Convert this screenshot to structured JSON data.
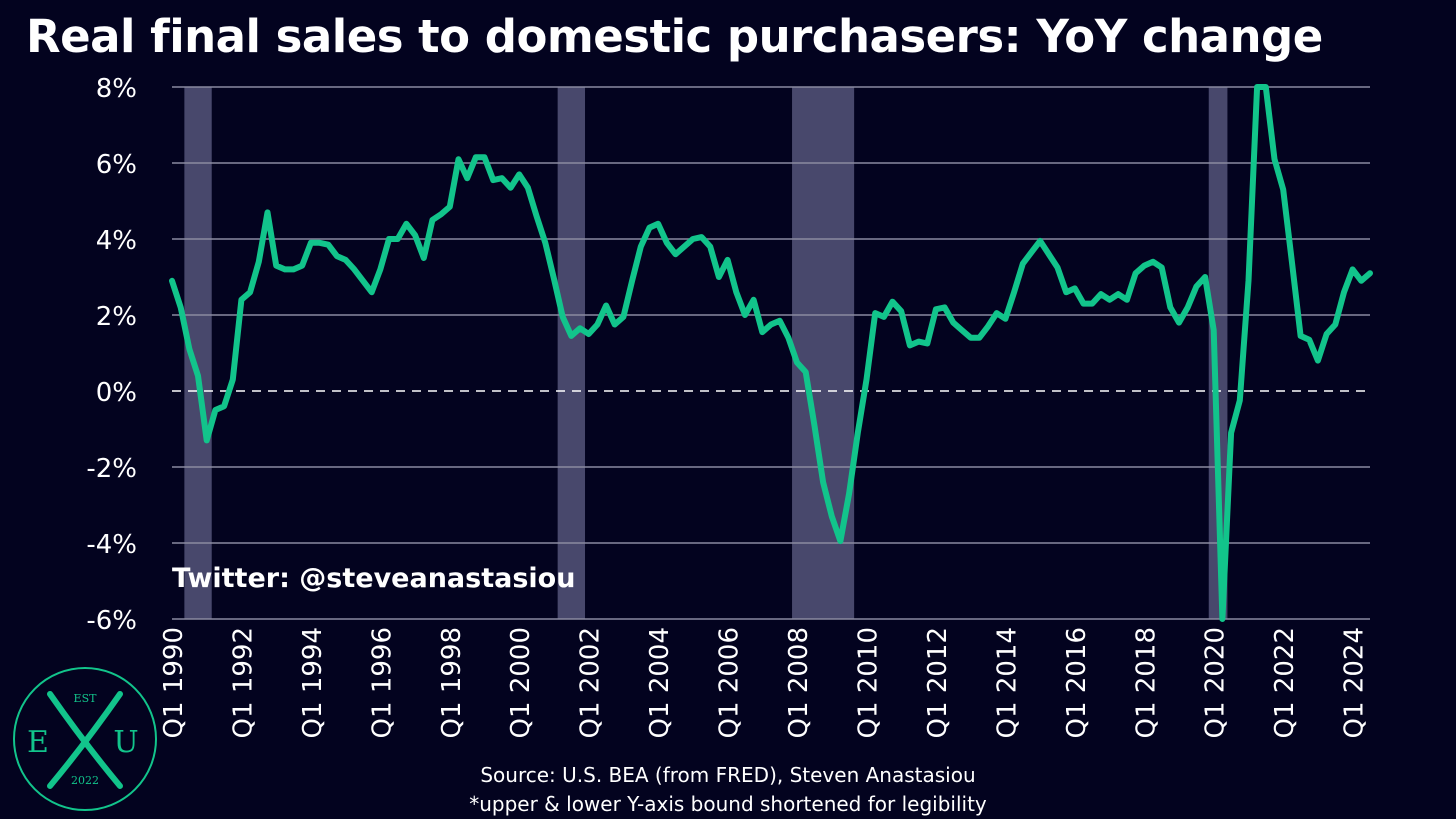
{
  "title": "Real final sales to domestic purchasers: YoY change",
  "watermark": "Twitter: @steveanastasiou",
  "source": "Source: U.S. BEA (from FRED), Steven Anastasiou",
  "note": "*upper & lower Y-axis bound shortened for legibility",
  "logo": {
    "top_text": "EST",
    "left_letter": "E",
    "right_letter": "U",
    "bottom_text": "2022"
  },
  "colors": {
    "background": "#03031f",
    "line": "#12c48b",
    "recession": "#55557a",
    "grid": "#8a8aa0",
    "text": "#ffffff",
    "logo": "#12c48b"
  },
  "chart_data": {
    "type": "line",
    "title": "Real final sales to domestic purchasers: YoY change",
    "xlabel": "",
    "ylabel": "",
    "ylim": [
      -6,
      8
    ],
    "yticks": [
      -6,
      -4,
      -2,
      0,
      2,
      4,
      6,
      8
    ],
    "ytick_labels": [
      "-6%",
      "-4%",
      "-2%",
      "0%",
      "2%",
      "4%",
      "6%",
      "8%"
    ],
    "xtick_labels": [
      "Q1 1990",
      "Q1 1992",
      "Q1 1994",
      "Q1 1996",
      "Q1 1998",
      "Q1 2000",
      "Q1 2002",
      "Q1 2004",
      "Q1 2006",
      "Q1 2008",
      "Q1 2010",
      "Q1 2012",
      "Q1 2014",
      "Q1 2016",
      "Q1 2018",
      "Q1 2020",
      "Q1 2022",
      "Q1 2024"
    ],
    "xtick_years": [
      1990,
      1992,
      1994,
      1996,
      1998,
      2000,
      2002,
      2004,
      2006,
      2008,
      2010,
      2012,
      2014,
      2016,
      2018,
      2020,
      2022,
      2024
    ],
    "x_range": [
      1990.0,
      2024.5
    ],
    "grid": true,
    "zero_line": "dashed",
    "recessions": [
      [
        1990.5,
        1991.0
      ],
      [
        2001.25,
        2001.75
      ],
      [
        2008.0,
        2009.5
      ],
      [
        2020.0,
        2020.25
      ]
    ],
    "series": [
      {
        "name": "",
        "x": [
          1990.0,
          1990.25,
          1990.5,
          1990.75,
          1991.0,
          1991.25,
          1991.5,
          1991.75,
          1992.0,
          1992.25,
          1992.5,
          1992.75,
          1993.0,
          1993.25,
          1993.5,
          1993.75,
          1994.0,
          1994.25,
          1994.5,
          1994.75,
          1995.0,
          1995.25,
          1995.5,
          1995.75,
          1996.0,
          1996.25,
          1996.5,
          1996.75,
          1997.0,
          1997.25,
          1997.5,
          1997.75,
          1998.0,
          1998.25,
          1998.5,
          1998.75,
          1999.0,
          1999.25,
          1999.5,
          1999.75,
          2000.0,
          2000.25,
          2000.5,
          2000.75,
          2001.0,
          2001.25,
          2001.5,
          2001.75,
          2002.0,
          2002.25,
          2002.5,
          2002.75,
          2003.0,
          2003.25,
          2003.5,
          2003.75,
          2004.0,
          2004.25,
          2004.5,
          2004.75,
          2005.0,
          2005.25,
          2005.5,
          2005.75,
          2006.0,
          2006.25,
          2006.5,
          2006.75,
          2007.0,
          2007.25,
          2007.5,
          2007.75,
          2008.0,
          2008.25,
          2008.5,
          2008.75,
          2009.0,
          2009.25,
          2009.5,
          2009.75,
          2010.0,
          2010.25,
          2010.5,
          2010.75,
          2011.0,
          2011.25,
          2011.5,
          2011.75,
          2012.0,
          2012.25,
          2012.5,
          2012.75,
          2013.0,
          2013.25,
          2013.5,
          2013.75,
          2014.0,
          2014.25,
          2014.5,
          2014.75,
          2015.0,
          2015.25,
          2015.5,
          2015.75,
          2016.0,
          2016.25,
          2016.5,
          2016.75,
          2017.0,
          2017.25,
          2017.5,
          2017.75,
          2018.0,
          2018.25,
          2018.5,
          2018.75,
          2019.0,
          2019.25,
          2019.5,
          2019.75,
          2020.0,
          2020.25,
          2020.5,
          2020.75,
          2021.0,
          2021.25,
          2021.5,
          2021.75,
          2022.0,
          2022.25,
          2022.5,
          2022.75,
          2023.0,
          2023.25,
          2023.5,
          2023.75,
          2024.0,
          2024.25,
          2024.5
        ],
        "values": [
          2.9,
          2.2,
          1.1,
          0.4,
          -1.3,
          -0.5,
          -0.4,
          0.3,
          2.4,
          2.6,
          3.4,
          4.7,
          3.3,
          3.2,
          3.2,
          3.3,
          3.9,
          3.9,
          3.85,
          3.55,
          3.45,
          3.2,
          2.9,
          2.6,
          3.2,
          4.0,
          4.0,
          4.4,
          4.1,
          3.5,
          4.5,
          4.65,
          4.85,
          6.1,
          5.6,
          6.15,
          6.15,
          5.55,
          5.6,
          5.35,
          5.7,
          5.35,
          4.6,
          3.9,
          2.95,
          1.95,
          1.45,
          1.65,
          1.5,
          1.75,
          2.25,
          1.75,
          1.95,
          2.9,
          3.8,
          4.3,
          4.4,
          3.9,
          3.6,
          3.8,
          4.0,
          4.05,
          3.8,
          3.0,
          3.45,
          2.6,
          2.0,
          2.4,
          1.55,
          1.75,
          1.85,
          1.4,
          0.75,
          0.5,
          -0.9,
          -2.4,
          -3.3,
          -3.95,
          -2.7,
          -1.1,
          0.3,
          2.05,
          1.95,
          2.35,
          2.1,
          1.2,
          1.3,
          1.25,
          2.15,
          2.2,
          1.8,
          1.6,
          1.4,
          1.4,
          1.7,
          2.05,
          1.9,
          2.6,
          3.35,
          3.65,
          3.95,
          3.6,
          3.25,
          2.6,
          2.7,
          2.3,
          2.3,
          2.55,
          2.4,
          2.55,
          2.4,
          3.1,
          3.3,
          3.4,
          3.25,
          2.2,
          1.8,
          2.2,
          2.75,
          3.0,
          1.6,
          -6.0,
          -1.1,
          -0.25,
          2.9,
          8.0,
          8.0,
          6.1,
          5.3,
          3.4,
          1.45,
          1.35,
          0.8,
          1.5,
          1.75,
          2.6,
          3.2,
          2.9,
          3.1
        ]
      }
    ]
  }
}
